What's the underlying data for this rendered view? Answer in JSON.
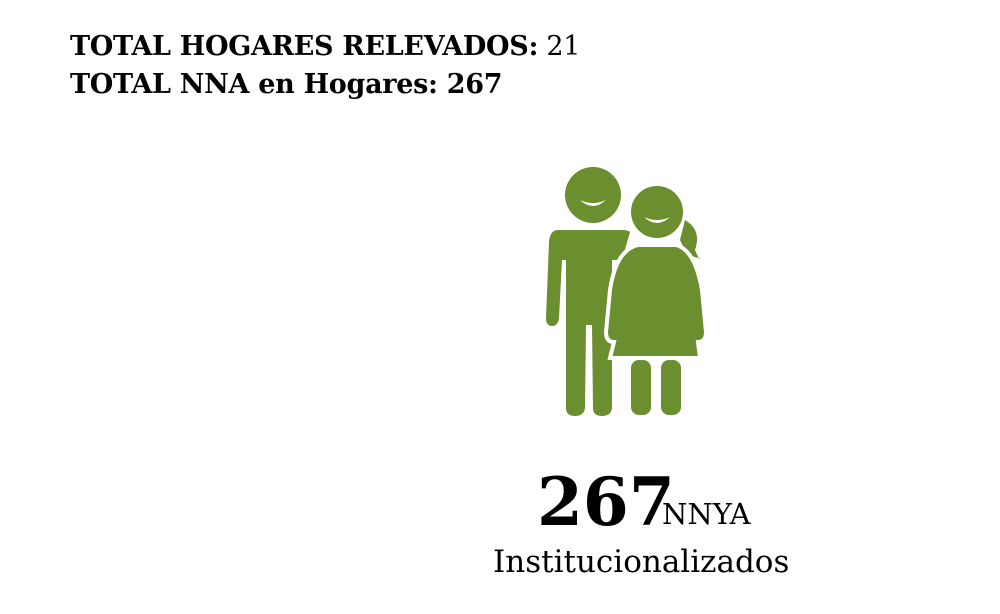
{
  "summary": {
    "line1_label": "TOTAL HOGARES RELEVADOS",
    "line1_sep": ":",
    "line1_value": " 21",
    "line2_label": "TOTAL NNA en Hogares",
    "line2_value": ": 267"
  },
  "figure": {
    "icon": "boy-and-girl-icon",
    "color": "#6b8e2f"
  },
  "stat": {
    "count": "267",
    "unit": "NNYA",
    "label": "Institucionalizados"
  }
}
